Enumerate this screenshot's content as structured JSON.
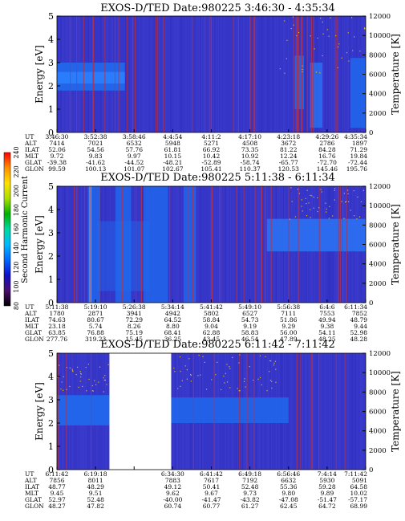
{
  "chart_data": [
    {
      "type": "heatmap",
      "title": "EXOS-D/TED   Date:980225  3:46:30 - 4:35:34",
      "ylabel": "Energy [eV]",
      "ylabel2": "Temperature [K]",
      "ylim": [
        0,
        5
      ],
      "y2lim": [
        0,
        12000
      ],
      "yticks": [
        "0",
        "1",
        "2",
        "3",
        "4",
        "5"
      ],
      "y2ticks": [
        "0",
        "2000",
        "4000",
        "6000",
        "8000",
        "10000",
        "12000"
      ],
      "row_labels": [
        "UT",
        "ALT",
        "ILAT",
        "MLT",
        "GLAT",
        "GLON"
      ],
      "columns": [
        [
          "3:46:30",
          "7414",
          "52.06",
          "9.72",
          "-39.38",
          "99.59"
        ],
        [
          "3:52:38",
          "7021",
          "54.56",
          "9.83",
          "-41.62",
          "100.13"
        ],
        [
          "3:58:46",
          "6532",
          "57.76",
          "9.97",
          "-44.52",
          "101.07"
        ],
        [
          "4:4:54",
          "5948",
          "61.81",
          "10.15",
          "-48.21",
          "102.67"
        ],
        [
          "4:11:2",
          "5271",
          "66.92",
          "10.42",
          "-52.89",
          "105.41"
        ],
        [
          "4:17:10",
          "4508",
          "73.35",
          "10.92",
          "-58.74",
          "110.37"
        ],
        [
          "4:23:18",
          "3672",
          "81.22",
          "12.24",
          "-65.77",
          "120.53"
        ],
        [
          "4:29:26",
          "2786",
          "84.28",
          "16.76",
          "-72.70",
          "145.46"
        ],
        [
          "4:35:34",
          "1897",
          "71.29",
          "19.84",
          "-72.44",
          "195.76"
        ]
      ]
    },
    {
      "type": "heatmap",
      "title": "EXOS-D/TED   Date:980225  5:11:38 - 6:11:34",
      "ylabel": "Energy [eV]",
      "ylabel2": "Temperature [K]",
      "ylim": [
        0,
        5
      ],
      "y2lim": [
        0,
        12000
      ],
      "yticks": [
        "0",
        "1",
        "2",
        "3",
        "4",
        "5"
      ],
      "y2ticks": [
        "0",
        "2000",
        "4000",
        "6000",
        "8000",
        "10000",
        "12000"
      ],
      "row_labels": [
        "UT",
        "ALT",
        "ILAT",
        "MLT",
        "GLAT",
        "GLON"
      ],
      "columns": [
        [
          "5:11:38",
          "1780",
          "74.63",
          "23.18",
          "63.85",
          "277.76"
        ],
        [
          "5:19:10",
          "2871",
          "80.67",
          "5.74",
          "76.88",
          "319.23"
        ],
        [
          "5:26:38",
          "3941",
          "72.29",
          "8.26",
          "75.19",
          "15.45"
        ],
        [
          "5:34:14",
          "4942",
          "64.52",
          "8.80",
          "68.41",
          "36.25"
        ],
        [
          "5:41:42",
          "5802",
          "58.84",
          "9.04",
          "62.88",
          "43.45"
        ],
        [
          "5:49:10",
          "6527",
          "54.73",
          "9.19",
          "58.83",
          "46.54"
        ],
        [
          "5:56:38",
          "7111",
          "51.86",
          "9.29",
          "56.00",
          "47.89"
        ],
        [
          "6:4:6",
          "7553",
          "49.94",
          "9.38",
          "54.11",
          "48.25"
        ],
        [
          "6:11:34",
          "7852",
          "48.79",
          "9.44",
          "52.98",
          "48.28"
        ]
      ]
    },
    {
      "type": "heatmap",
      "title": "EXOS-D/TED   Date:980225  6:11:42 - 7:11:42",
      "ylabel": "Energy [eV]",
      "ylabel2": "Temperature [K]",
      "ylim": [
        0,
        5
      ],
      "y2lim": [
        0,
        12000
      ],
      "yticks": [
        "0",
        "1",
        "2",
        "3",
        "4",
        "5"
      ],
      "y2ticks": [
        "0",
        "2000",
        "4000",
        "6000",
        "8000",
        "10000",
        "12000"
      ],
      "row_labels": [
        "UT",
        "ALT",
        "ILAT",
        "MLT",
        "GLAT",
        "GLON"
      ],
      "columns": [
        [
          "6:11:42",
          "7856",
          "48.77",
          "9.45",
          "52.97",
          "48.27"
        ],
        [
          "6:19:18",
          "8011",
          "48.29",
          "9.51",
          "52.48",
          "47.82"
        ],
        null,
        [
          "6:34:30",
          "7883",
          "49.12",
          "9.62",
          "-40.00",
          "60.74"
        ],
        [
          "6:41:42",
          "7617",
          "50.41",
          "9.67",
          "-41.47",
          "60.77"
        ],
        [
          "6:49:18",
          "7192",
          "52.48",
          "9.73",
          "-43.82",
          "61.27"
        ],
        [
          "6:56:46",
          "6632",
          "55.36",
          "9.80",
          "-47.08",
          "62.45"
        ],
        [
          "7:4:14",
          "5930",
          "59.28",
          "9.89",
          "-51.47",
          "64.72"
        ],
        [
          "7:11:42",
          "5091",
          "64.58",
          "10.02",
          "-57.17",
          "68.99"
        ]
      ]
    }
  ],
  "colorbar": {
    "label": "Second Harmonic Current",
    "ticks": [
      "80",
      "100",
      "120",
      "140",
      "160",
      "180",
      "200",
      "220",
      "240"
    ],
    "colors": [
      "#000000",
      "#4a0f6e",
      "#1010c8",
      "#0068ff",
      "#00b8ff",
      "#00d8a0",
      "#00b000",
      "#a8e000",
      "#ffe000",
      "#ff9000",
      "#ff0000"
    ]
  },
  "colors": {
    "background": "#3535c8",
    "band": "#1e6cf0",
    "noise_red": "#c0303a",
    "dots": "#e8b030"
  }
}
